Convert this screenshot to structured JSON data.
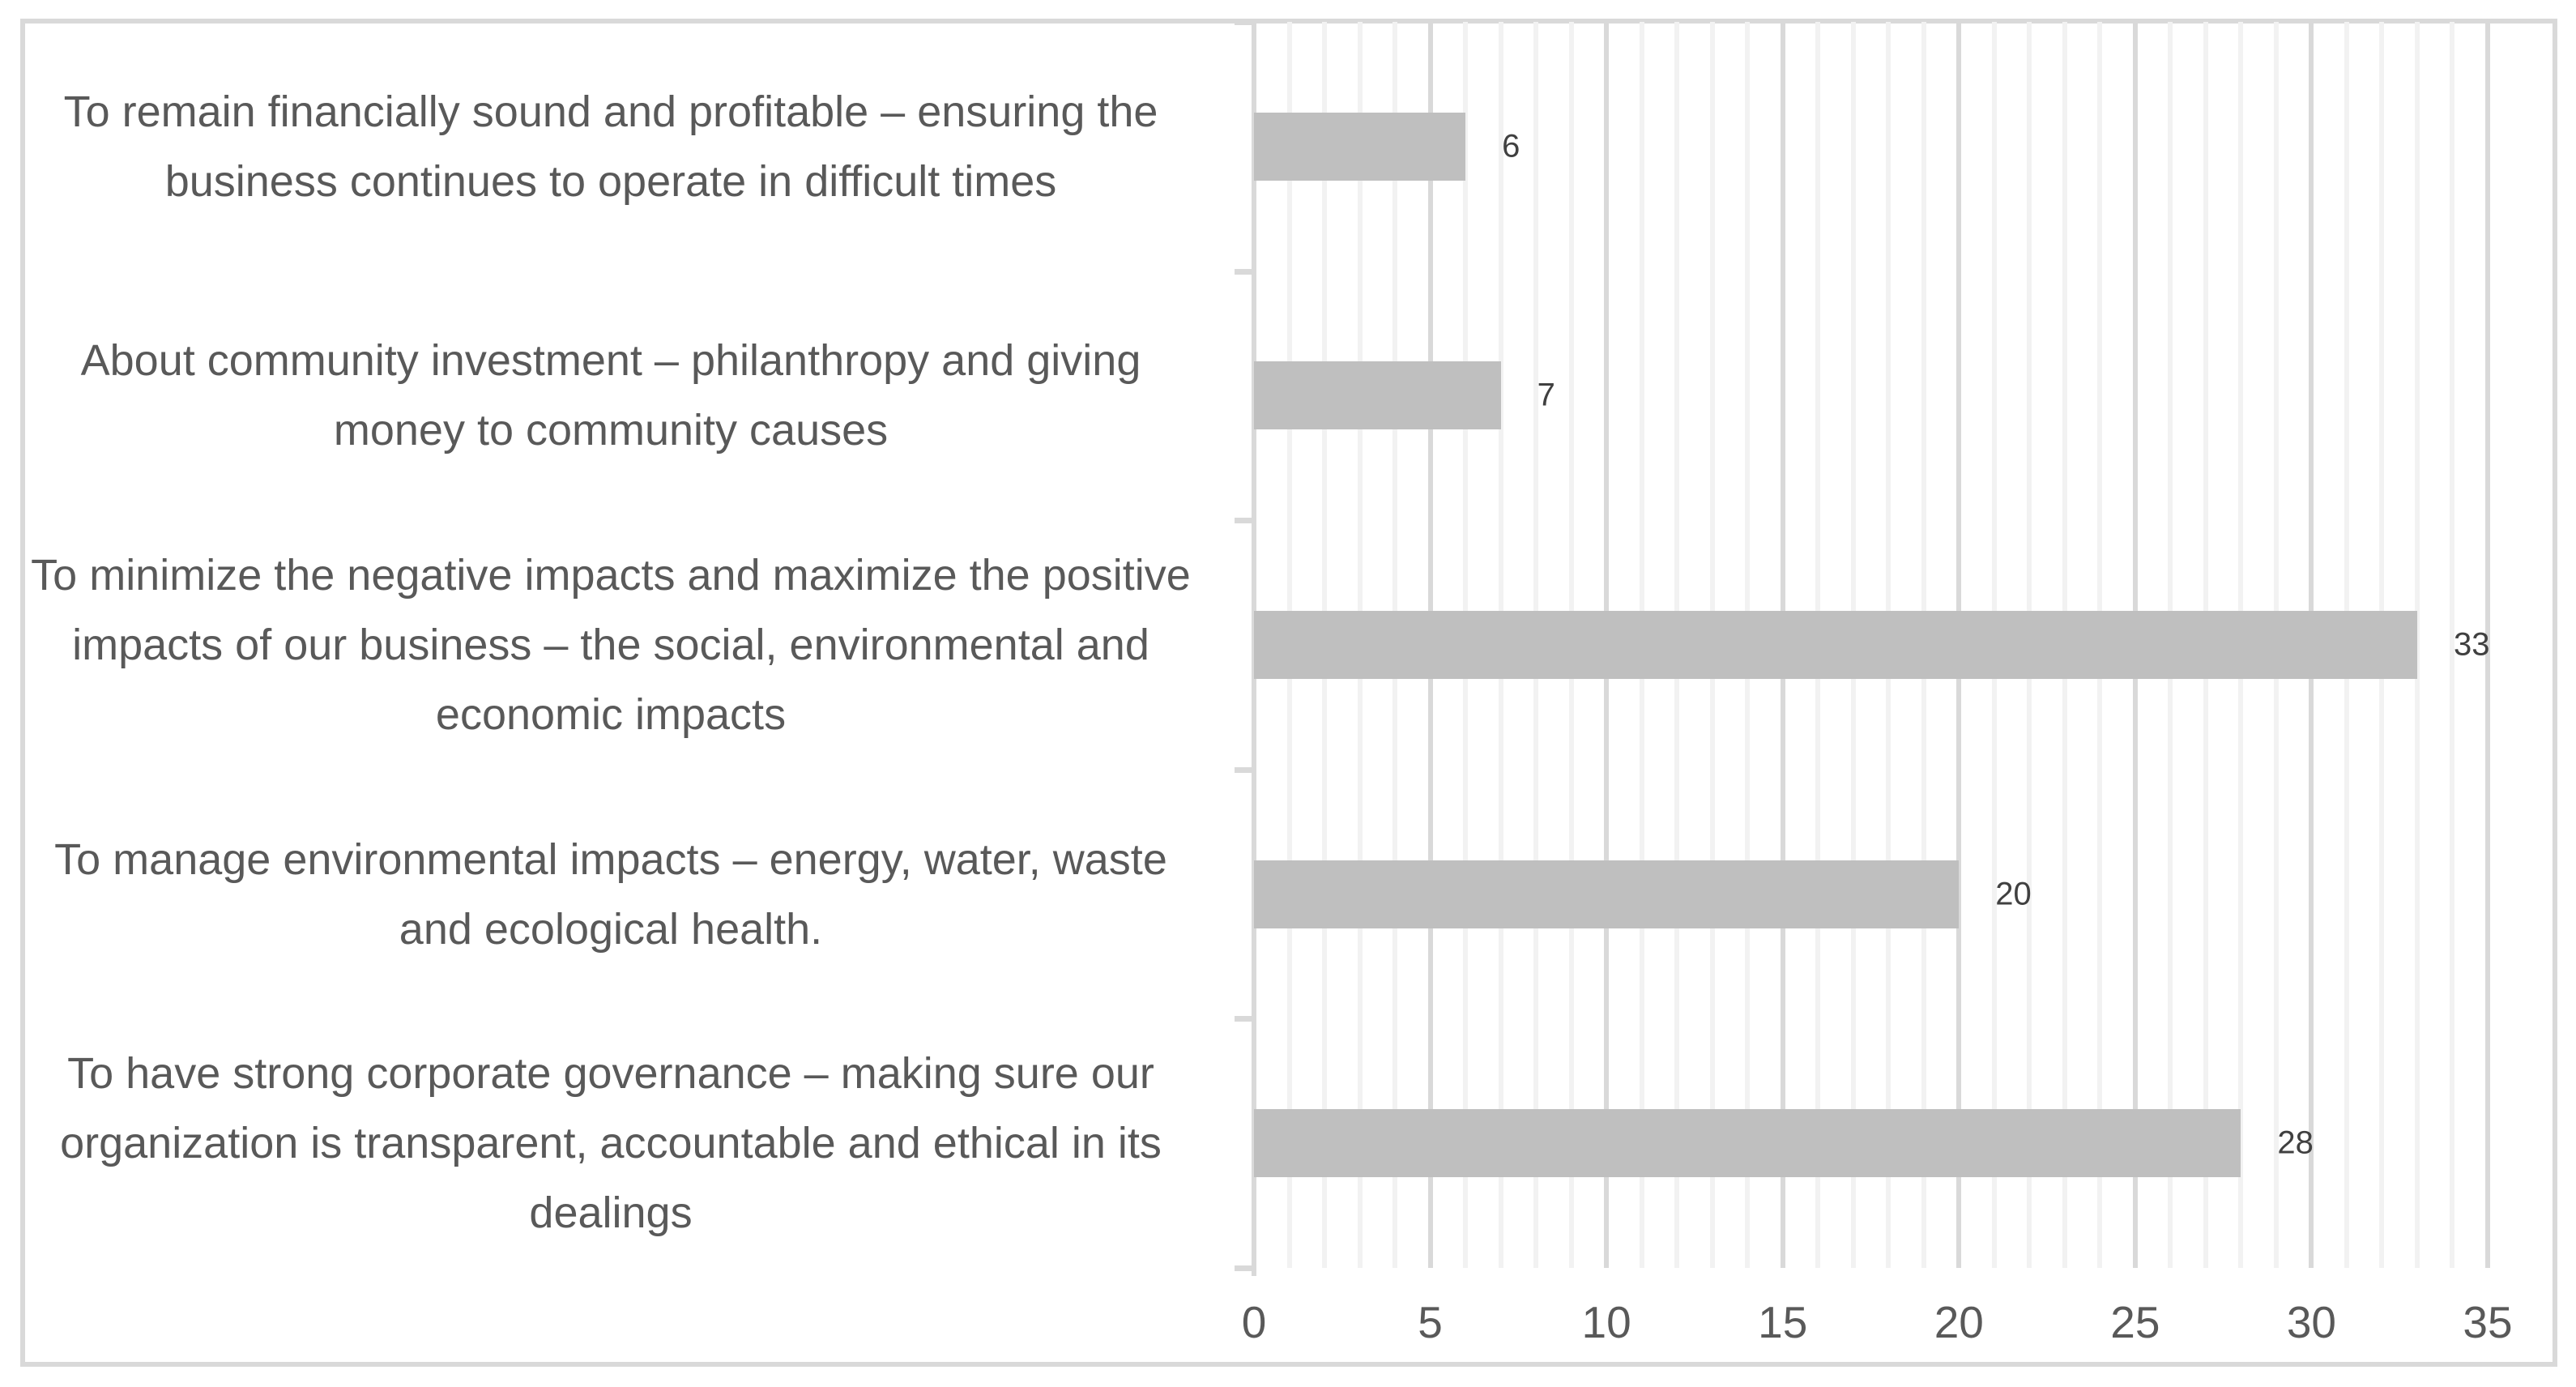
{
  "chart_data": {
    "type": "bar",
    "orientation": "horizontal",
    "title": "",
    "categories": [
      "To remain financially sound and profitable – ensuring the business continues to operate in difficult times",
      "About community investment – philanthropy and giving money to community causes",
      "To minimize the negative impacts and maximize the positive impacts of our business – the social, environmental and economic impacts",
      "To manage environmental impacts – energy, water, waste and ecological health.",
      "To have strong corporate governance – making sure our organization is transparent, accountable and ethical in its dealings"
    ],
    "values": [
      6,
      7,
      33,
      20,
      28
    ],
    "data_labels": [
      "6",
      "7",
      "33",
      "20",
      "28"
    ],
    "xlim": [
      0,
      35
    ],
    "xticks": [
      "0",
      "5",
      "10",
      "15",
      "20",
      "25",
      "30",
      "35"
    ],
    "minor_grid_step": 1,
    "major_grid_step": 5,
    "grid": true,
    "legend": false,
    "xlabel": "",
    "ylabel": "",
    "colors": {
      "bar": "#bfbfbf",
      "minor_gridline": "#f2f2f2",
      "major_gridline": "#d9d9d9",
      "axis_line": "#d9d9d9",
      "frame_border": "#d9d9d9",
      "category_text": "#595959",
      "tick_text": "#595959",
      "value_text": "#404040",
      "background": "#ffffff"
    }
  }
}
